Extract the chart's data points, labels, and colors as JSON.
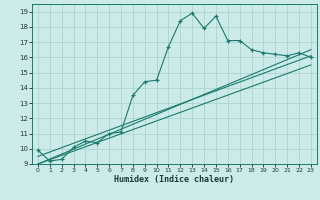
{
  "title": "",
  "xlabel": "Humidex (Indice chaleur)",
  "bg_color": "#cceae7",
  "line_color": "#1a7a6e",
  "grid_color": "#aad4d0",
  "xlim": [
    -0.5,
    23.5
  ],
  "ylim": [
    9,
    19.5
  ],
  "yticks": [
    9,
    10,
    11,
    12,
    13,
    14,
    15,
    16,
    17,
    18,
    19
  ],
  "xticks": [
    0,
    1,
    2,
    3,
    4,
    5,
    6,
    7,
    8,
    9,
    10,
    11,
    12,
    13,
    14,
    15,
    16,
    17,
    18,
    19,
    20,
    21,
    22,
    23
  ],
  "main_x": [
    0,
    1,
    2,
    3,
    4,
    5,
    6,
    7,
    8,
    9,
    10,
    11,
    12,
    13,
    14,
    15,
    16,
    17,
    18,
    19,
    20,
    21,
    22,
    23
  ],
  "main_y": [
    9.9,
    9.2,
    9.3,
    10.1,
    10.5,
    10.4,
    11.0,
    11.1,
    13.5,
    14.4,
    14.5,
    16.7,
    18.4,
    18.9,
    17.9,
    18.7,
    17.1,
    17.1,
    16.5,
    16.3,
    16.2,
    16.1,
    16.3,
    16.0
  ],
  "line2_x": [
    0,
    23
  ],
  "line2_y": [
    9.5,
    16.1
  ],
  "line3_x": [
    0,
    23
  ],
  "line3_y": [
    9.0,
    15.5
  ],
  "line4_x": [
    0,
    23
  ],
  "line4_y": [
    9.0,
    16.5
  ]
}
